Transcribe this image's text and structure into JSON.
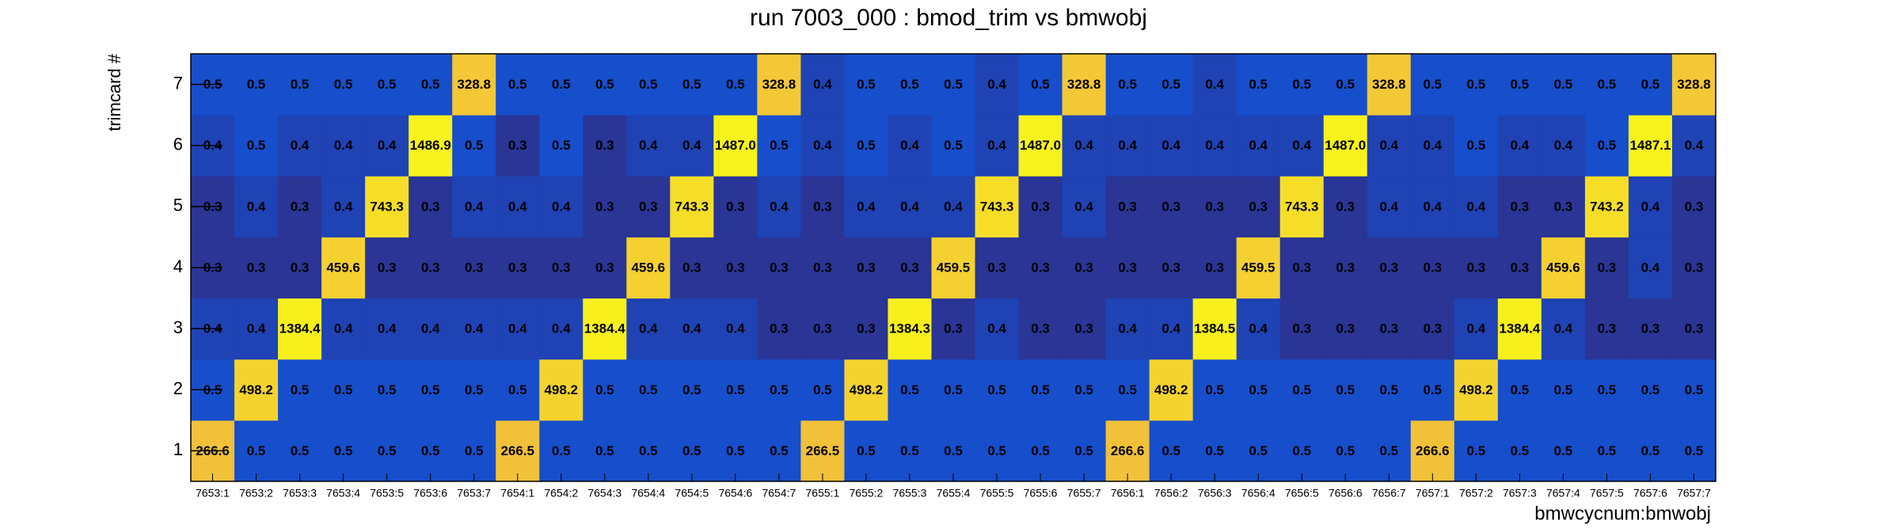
{
  "chart_data": {
    "type": "heatmap",
    "title": "run 7003_000 : bmod_trim vs bmwobj",
    "x_label": "bmwcycnum:bmwobj",
    "y_label": "trimcard #",
    "categories": [
      "7653:1",
      "7653:2",
      "7653:3",
      "7653:4",
      "7653:5",
      "7653:6",
      "7653:7",
      "7654:1",
      "7654:2",
      "7654:3",
      "7654:4",
      "7654:5",
      "7654:6",
      "7654:7",
      "7655:1",
      "7655:2",
      "7655:3",
      "7655:4",
      "7655:5",
      "7655:6",
      "7655:7",
      "7656:1",
      "7656:2",
      "7656:3",
      "7656:4",
      "7656:5",
      "7656:6",
      "7656:7",
      "7657:1",
      "7657:2",
      "7657:3",
      "7657:4",
      "7657:5",
      "7657:6",
      "7657:7"
    ],
    "ylim": [
      0.5,
      7.5
    ],
    "yticks": [
      1,
      2,
      3,
      4,
      5,
      6,
      7
    ],
    "palette": [
      "#2a3596",
      "#1452d4",
      "#f3c13a",
      "#f8f21c"
    ],
    "values": [
      [
        266.6,
        0.5,
        0.5,
        0.5,
        0.5,
        0.5,
        0.5,
        266.5,
        0.5,
        0.5,
        0.5,
        0.5,
        0.5,
        0.5,
        266.5,
        0.5,
        0.5,
        0.5,
        0.5,
        0.5,
        0.5,
        266.6,
        0.5,
        0.5,
        0.5,
        0.5,
        0.5,
        0.5,
        266.6,
        0.5,
        0.5,
        0.5,
        0.5,
        0.5,
        0.5
      ],
      [
        0.5,
        498.2,
        0.5,
        0.5,
        0.5,
        0.5,
        0.5,
        0.5,
        498.2,
        0.5,
        0.5,
        0.5,
        0.5,
        0.5,
        0.5,
        498.2,
        0.5,
        0.5,
        0.5,
        0.5,
        0.5,
        0.5,
        498.2,
        0.5,
        0.5,
        0.5,
        0.5,
        0.5,
        0.5,
        498.2,
        0.5,
        0.5,
        0.5,
        0.5,
        0.5
      ],
      [
        0.4,
        0.4,
        1384.4,
        0.4,
        0.4,
        0.4,
        0.4,
        0.4,
        0.4,
        1384.4,
        0.4,
        0.4,
        0.4,
        0.3,
        0.3,
        0.3,
        1384.3,
        0.3,
        0.4,
        0.3,
        0.3,
        0.4,
        0.4,
        1384.5,
        0.4,
        0.3,
        0.3,
        0.3,
        0.3,
        0.4,
        1384.4,
        0.4,
        0.3,
        0.3,
        0.3
      ],
      [
        0.3,
        0.3,
        0.3,
        459.6,
        0.3,
        0.3,
        0.3,
        0.3,
        0.3,
        0.3,
        459.6,
        0.3,
        0.3,
        0.3,
        0.3,
        0.3,
        0.3,
        459.5,
        0.3,
        0.3,
        0.3,
        0.3,
        0.3,
        0.3,
        459.5,
        0.3,
        0.3,
        0.3,
        0.3,
        0.3,
        0.3,
        459.6,
        0.3,
        0.4,
        0.3
      ],
      [
        0.3,
        0.4,
        0.3,
        0.4,
        743.3,
        0.3,
        0.4,
        0.4,
        0.4,
        0.3,
        0.3,
        743.3,
        0.3,
        0.4,
        0.3,
        0.4,
        0.4,
        0.4,
        743.3,
        0.3,
        0.4,
        0.3,
        0.3,
        0.3,
        0.3,
        743.3,
        0.3,
        0.4,
        0.4,
        0.4,
        0.3,
        0.3,
        743.2,
        0.4,
        0.3
      ],
      [
        0.4,
        0.5,
        0.4,
        0.4,
        0.4,
        1486.9,
        0.5,
        0.3,
        0.5,
        0.3,
        0.4,
        0.4,
        1487.0,
        0.5,
        0.4,
        0.5,
        0.4,
        0.5,
        0.4,
        1487.0,
        0.4,
        0.4,
        0.4,
        0.4,
        0.4,
        0.4,
        1487.0,
        0.4,
        0.4,
        0.5,
        0.4,
        0.4,
        0.5,
        1487.1,
        0.4
      ],
      [
        0.5,
        0.5,
        0.5,
        0.5,
        0.5,
        0.5,
        328.8,
        0.5,
        0.5,
        0.5,
        0.5,
        0.5,
        0.5,
        328.8,
        0.4,
        0.5,
        0.5,
        0.5,
        0.4,
        0.5,
        328.8,
        0.5,
        0.5,
        0.4,
        0.5,
        0.5,
        0.5,
        328.8,
        0.5,
        0.5,
        0.5,
        0.5,
        0.5,
        0.5,
        328.8
      ]
    ],
    "value_labels": [
      [
        "266.6",
        "0.5",
        "0.5",
        "0.5",
        "0.5",
        "0.5",
        "0.5",
        "266.5",
        "0.5",
        "0.5",
        "0.5",
        "0.5",
        "0.5",
        "0.5",
        "266.5",
        "0.5",
        "0.5",
        "0.5",
        "0.5",
        "0.5",
        "0.5",
        "266.6",
        "0.5",
        "0.5",
        "0.5",
        "0.5",
        "0.5",
        "0.5",
        "266.6",
        "0.5",
        "0.5",
        "0.5",
        "0.5",
        "0.5",
        "0.5"
      ],
      [
        "0.5",
        "498.2",
        "0.5",
        "0.5",
        "0.5",
        "0.5",
        "0.5",
        "0.5",
        "498.2",
        "0.5",
        "0.5",
        "0.5",
        "0.5",
        "0.5",
        "0.5",
        "498.2",
        "0.5",
        "0.5",
        "0.5",
        "0.5",
        "0.5",
        "0.5",
        "498.2",
        "0.5",
        "0.5",
        "0.5",
        "0.5",
        "0.5",
        "0.5",
        "498.2",
        "0.5",
        "0.5",
        "0.5",
        "0.5",
        "0.5"
      ],
      [
        "0.4",
        "0.4",
        "1384.4",
        "0.4",
        "0.4",
        "0.4",
        "0.4",
        "0.4",
        "0.4",
        "1384.4",
        "0.4",
        "0.4",
        "0.4",
        "0.3",
        "0.3",
        "0.3",
        "1384.3",
        "0.3",
        "0.4",
        "0.3",
        "0.3",
        "0.4",
        "0.4",
        "1384.5",
        "0.4",
        "0.3",
        "0.3",
        "0.3",
        "0.3",
        "0.4",
        "1384.4",
        "0.4",
        "0.3",
        "0.3",
        "0.3"
      ],
      [
        "0.3",
        "0.3",
        "0.3",
        "459.6",
        "0.3",
        "0.3",
        "0.3",
        "0.3",
        "0.3",
        "0.3",
        "459.6",
        "0.3",
        "0.3",
        "0.3",
        "0.3",
        "0.3",
        "0.3",
        "459.5",
        "0.3",
        "0.3",
        "0.3",
        "0.3",
        "0.3",
        "0.3",
        "459.5",
        "0.3",
        "0.3",
        "0.3",
        "0.3",
        "0.3",
        "0.3",
        "459.6",
        "0.3",
        "0.4",
        "0.3"
      ],
      [
        "0.3",
        "0.4",
        "0.3",
        "0.4",
        "743.3",
        "0.3",
        "0.4",
        "0.4",
        "0.4",
        "0.3",
        "0.3",
        "743.3",
        "0.3",
        "0.4",
        "0.3",
        "0.4",
        "0.4",
        "0.4",
        "743.3",
        "0.3",
        "0.4",
        "0.3",
        "0.3",
        "0.3",
        "0.3",
        "743.3",
        "0.3",
        "0.4",
        "0.4",
        "0.4",
        "0.3",
        "0.3",
        "743.2",
        "0.4",
        "0.3"
      ],
      [
        "0.4",
        "0.5",
        "0.4",
        "0.4",
        "0.4",
        "1486.9",
        "0.5",
        "0.3",
        "0.5",
        "0.3",
        "0.4",
        "0.4",
        "1487.0",
        "0.5",
        "0.4",
        "0.5",
        "0.4",
        "0.5",
        "0.4",
        "1487.0",
        "0.4",
        "0.4",
        "0.4",
        "0.4",
        "0.4",
        "0.4",
        "1487.0",
        "0.4",
        "0.4",
        "0.5",
        "0.4",
        "0.4",
        "0.5",
        "1487.1",
        "0.4"
      ],
      [
        "0.5",
        "0.5",
        "0.5",
        "0.5",
        "0.5",
        "0.5",
        "328.8",
        "0.5",
        "0.5",
        "0.5",
        "0.5",
        "0.5",
        "0.5",
        "328.8",
        "0.4",
        "0.5",
        "0.5",
        "0.5",
        "0.4",
        "0.5",
        "328.8",
        "0.5",
        "0.5",
        "0.4",
        "0.5",
        "0.5",
        "0.5",
        "328.8",
        "0.5",
        "0.5",
        "0.5",
        "0.5",
        "0.5",
        "0.5",
        "328.8"
      ]
    ]
  }
}
